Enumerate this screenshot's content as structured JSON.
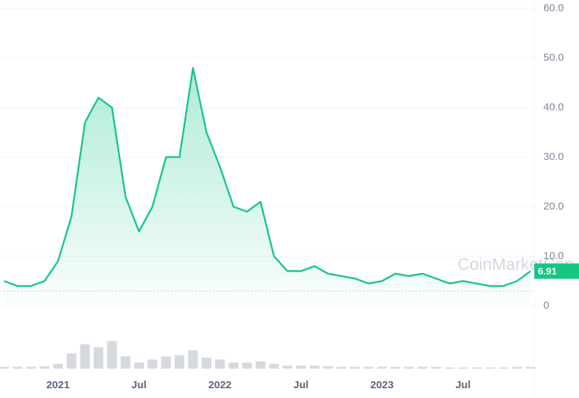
{
  "chart_data": {
    "type": "line",
    "watermark": "CoinMarketCap",
    "last_price_label": "6.91",
    "x": [
      "2020-09",
      "2020-10",
      "2020-11",
      "2020-12",
      "2021-01",
      "2021-02",
      "2021-03",
      "2021-04",
      "2021-05",
      "2021-06",
      "2021-07",
      "2021-08",
      "2021-09",
      "2021-10",
      "2021-11",
      "2021-12",
      "2022-01",
      "2022-02",
      "2022-03",
      "2022-04",
      "2022-05",
      "2022-06",
      "2022-07",
      "2022-08",
      "2022-09",
      "2022-10",
      "2022-11",
      "2022-12",
      "2023-01",
      "2023-02",
      "2023-03",
      "2023-04",
      "2023-05",
      "2023-06",
      "2023-07",
      "2023-08",
      "2023-09",
      "2023-10",
      "2023-11",
      "2023-12"
    ],
    "series": [
      {
        "name": "Price",
        "color": "#16c784",
        "values": [
          5,
          4,
          4,
          5,
          9,
          18,
          37,
          42,
          40,
          22,
          15,
          20,
          30,
          30,
          48,
          35,
          28,
          20,
          19,
          21,
          10,
          7,
          7,
          8,
          6.5,
          6,
          5.5,
          4.5,
          5,
          6.5,
          6,
          6.5,
          5.5,
          4.5,
          5,
          4.5,
          4,
          4,
          5,
          7
        ]
      },
      {
        "name": "Volume",
        "color": "#c5cad3",
        "axis": "y2",
        "values": [
          3,
          3,
          3,
          4,
          8,
          25,
          40,
          35,
          45,
          20,
          10,
          15,
          20,
          22,
          30,
          18,
          15,
          10,
          10,
          12,
          8,
          5,
          5,
          5,
          4,
          3,
          3,
          3,
          3,
          3,
          3,
          3,
          3,
          2,
          2,
          2,
          2,
          2,
          3,
          3
        ]
      }
    ],
    "ylim": [
      0,
      60
    ],
    "yticks": [
      0,
      {
        "value": 10,
        "label": "10.0"
      },
      {
        "value": 20,
        "label": "20.0"
      },
      {
        "value": 30,
        "label": "30.0"
      },
      {
        "value": 40,
        "label": "40.0"
      },
      {
        "value": 50,
        "label": "50.0"
      },
      {
        "value": 60,
        "label": "60.0"
      }
    ],
    "y2lim": [
      0,
      100
    ],
    "xticks": [
      {
        "value": "2021-01",
        "label": "2021"
      },
      {
        "value": "2021-07",
        "label": "Jul"
      },
      {
        "value": "2022-01",
        "label": "2022"
      },
      {
        "value": "2022-07",
        "label": "Jul"
      },
      {
        "value": "2023-01",
        "label": "2023"
      },
      {
        "value": "2023-07",
        "label": "Jul"
      }
    ],
    "grid": true
  }
}
